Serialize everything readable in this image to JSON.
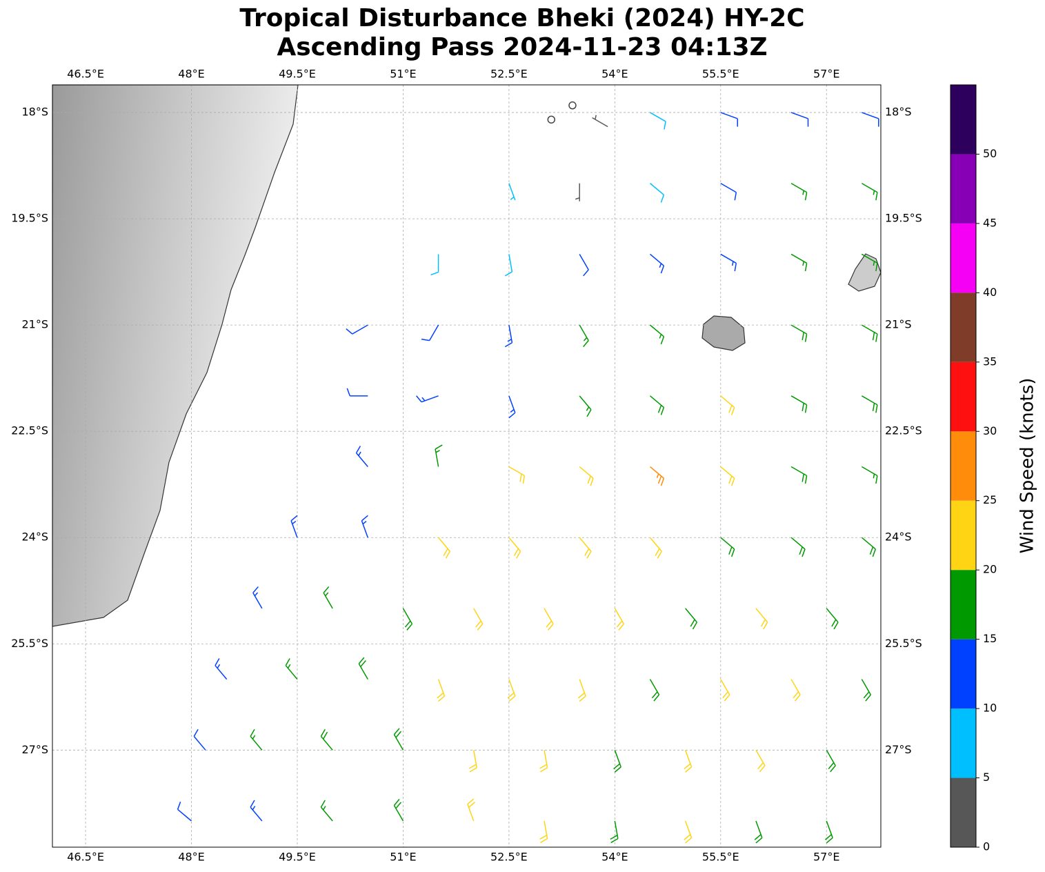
{
  "chart_data": {
    "type": "barbs",
    "title": [
      "Tropical Disturbance Bheki (2024) HY-2C",
      "Ascending Pass 2024-11-23 04:13Z"
    ],
    "xlim": [
      46.03,
      57.77
    ],
    "ylim": [
      -28.37,
      -17.61
    ],
    "xticks": [
      {
        "value": 46.5,
        "label": "46.5°E"
      },
      {
        "value": 48,
        "label": "48°E"
      },
      {
        "value": 49.5,
        "label": "49.5°E"
      },
      {
        "value": 51,
        "label": "51°E"
      },
      {
        "value": 52.5,
        "label": "52.5°E"
      },
      {
        "value": 54,
        "label": "54°E"
      },
      {
        "value": 55.5,
        "label": "55.5°E"
      },
      {
        "value": 57,
        "label": "57°E"
      }
    ],
    "yticks": [
      {
        "value": -18,
        "label": "18°S"
      },
      {
        "value": -19.5,
        "label": "19.5°S"
      },
      {
        "value": -21,
        "label": "21°S"
      },
      {
        "value": -22.5,
        "label": "22.5°S"
      },
      {
        "value": -24,
        "label": "24°S"
      },
      {
        "value": -25.5,
        "label": "25.5°S"
      },
      {
        "value": -27,
        "label": "27°S"
      }
    ],
    "grid": true,
    "colorbar": {
      "label": "Wind Speed (knots)",
      "lim": [
        0,
        55
      ],
      "bounds": [
        0,
        5,
        10,
        15,
        20,
        25,
        30,
        35,
        40,
        45,
        50,
        55
      ],
      "colors": [
        "#575757",
        "#00bfff",
        "#0040ff",
        "#009900",
        "#ffd414",
        "#ff8c0a",
        "#ff1010",
        "#7f3c28",
        "#f500f5",
        "#8800b5",
        "#2e005e"
      ],
      "ticks": [
        0,
        5,
        10,
        15,
        20,
        25,
        30,
        35,
        40,
        45,
        50
      ]
    },
    "barbs": [
      [
        53.1,
        -18.1,
        200,
        1
      ],
      [
        53.4,
        -17.9,
        90,
        1
      ],
      [
        53.9,
        -18.2,
        300,
        3
      ],
      [
        54.5,
        -18,
        120,
        8
      ],
      [
        55.5,
        -18,
        110,
        10
      ],
      [
        56.5,
        -18,
        110,
        12
      ],
      [
        57.5,
        -18,
        110,
        12
      ],
      [
        52.5,
        -19,
        160,
        7
      ],
      [
        53.5,
        -19,
        180,
        4
      ],
      [
        54.5,
        -19,
        130,
        9
      ],
      [
        55.5,
        -19,
        120,
        12
      ],
      [
        56.5,
        -19,
        120,
        15
      ],
      [
        57.5,
        -19,
        120,
        16
      ],
      [
        51.5,
        -20,
        180,
        8
      ],
      [
        52.5,
        -20,
        170,
        9
      ],
      [
        53.5,
        -20,
        150,
        12
      ],
      [
        54.5,
        -20,
        130,
        13
      ],
      [
        55.5,
        -20,
        120,
        14
      ],
      [
        56.5,
        -20,
        120,
        16
      ],
      [
        57.5,
        -20,
        120,
        17
      ],
      [
        50.5,
        -21,
        240,
        11
      ],
      [
        51.5,
        -21,
        210,
        12
      ],
      [
        52.5,
        -21,
        170,
        13
      ],
      [
        53.5,
        -21,
        150,
        15
      ],
      [
        54.5,
        -21,
        130,
        17
      ],
      [
        56.5,
        -21,
        120,
        18
      ],
      [
        57.5,
        -21,
        120,
        18
      ],
      [
        50.5,
        -22,
        270,
        12
      ],
      [
        51.5,
        -22,
        250,
        13
      ],
      [
        52.5,
        -22,
        160,
        14
      ],
      [
        53.5,
        -22,
        140,
        17
      ],
      [
        54.5,
        -22,
        130,
        19
      ],
      [
        55.5,
        -22,
        130,
        22
      ],
      [
        56.5,
        -22,
        120,
        19
      ],
      [
        57.5,
        -22,
        120,
        18
      ],
      [
        50.5,
        -23,
        320,
        13
      ],
      [
        51.5,
        -23,
        350,
        17
      ],
      [
        52.5,
        -23,
        120,
        21
      ],
      [
        53.5,
        -23,
        130,
        22
      ],
      [
        54.5,
        -23,
        130,
        27
      ],
      [
        55.5,
        -23,
        130,
        22
      ],
      [
        56.5,
        -23,
        120,
        19
      ],
      [
        57.5,
        -23,
        120,
        17
      ],
      [
        49.5,
        -24,
        340,
        13
      ],
      [
        50.5,
        -24,
        340,
        14
      ],
      [
        51.5,
        -24,
        140,
        22
      ],
      [
        52.5,
        -24,
        140,
        22
      ],
      [
        53.5,
        -24,
        140,
        22
      ],
      [
        54.5,
        -24,
        140,
        22
      ],
      [
        55.5,
        -24,
        130,
        19
      ],
      [
        56.5,
        -24,
        130,
        19
      ],
      [
        57.5,
        -24,
        130,
        18
      ],
      [
        49,
        -25,
        330,
        13
      ],
      [
        50,
        -25,
        330,
        17
      ],
      [
        51,
        -25,
        150,
        19
      ],
      [
        52,
        -25,
        150,
        22
      ],
      [
        53,
        -25,
        150,
        22
      ],
      [
        54,
        -25,
        150,
        20
      ],
      [
        55,
        -25,
        140,
        19
      ],
      [
        56,
        -25,
        140,
        21
      ],
      [
        57,
        -25,
        140,
        19
      ],
      [
        48.5,
        -26,
        320,
        13
      ],
      [
        49.5,
        -26,
        320,
        17
      ],
      [
        50.5,
        -26,
        330,
        18
      ],
      [
        51.5,
        -26,
        160,
        22
      ],
      [
        52.5,
        -26,
        160,
        21
      ],
      [
        53.5,
        -26,
        160,
        22
      ],
      [
        54.5,
        -26,
        150,
        19
      ],
      [
        55.5,
        -26,
        150,
        22
      ],
      [
        56.5,
        -26,
        150,
        20
      ],
      [
        57.5,
        -26,
        150,
        19
      ],
      [
        48.2,
        -27,
        320,
        12
      ],
      [
        49,
        -27,
        320,
        17
      ],
      [
        50,
        -27,
        320,
        18
      ],
      [
        51,
        -27,
        330,
        19
      ],
      [
        52,
        -27,
        170,
        21
      ],
      [
        53,
        -27,
        170,
        22
      ],
      [
        54,
        -27,
        160,
        19
      ],
      [
        55,
        -27,
        160,
        21
      ],
      [
        56,
        -27,
        150,
        20
      ],
      [
        57,
        -27,
        150,
        19
      ],
      [
        48,
        -28,
        310,
        11
      ],
      [
        49,
        -28,
        320,
        13
      ],
      [
        50,
        -28,
        320,
        17
      ],
      [
        51,
        -28,
        330,
        18
      ],
      [
        52,
        -28,
        340,
        21
      ],
      [
        53,
        -28,
        170,
        22
      ],
      [
        54,
        -28,
        170,
        18
      ],
      [
        55,
        -28,
        160,
        20
      ],
      [
        56,
        -28,
        160,
        19
      ],
      [
        57,
        -28,
        160,
        18
      ]
    ]
  }
}
